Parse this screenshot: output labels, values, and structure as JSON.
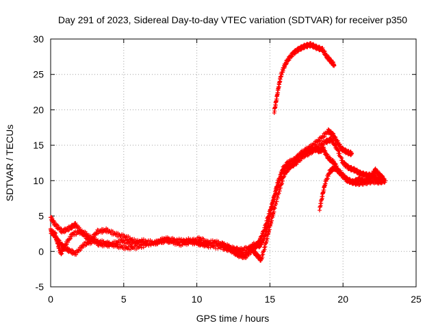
{
  "chart_data": {
    "type": "scatter",
    "title": "Day 291 of 2023, Sidereal Day-to-day VTEC variation (SDTVAR) for receiver p350",
    "xlabel": "GPS time / hours",
    "ylabel": "SDTVAR / TECUs",
    "xlim": [
      0,
      25
    ],
    "ylim": [
      -5,
      30
    ],
    "xticks": [
      0,
      5,
      10,
      15,
      20,
      25
    ],
    "yticks": [
      -5,
      0,
      5,
      10,
      15,
      20,
      25,
      30
    ],
    "grid": true,
    "marker": "+",
    "color": "#ff0000",
    "series": [
      {
        "name": "track-1",
        "points": [
          [
            0,
            4.8
          ],
          [
            0.3,
            3.8
          ],
          [
            0.8,
            2.8
          ],
          [
            1.3,
            3.3
          ],
          [
            1.7,
            3.8
          ],
          [
            2.2,
            2.5
          ],
          [
            2.7,
            1.5
          ],
          [
            3.2,
            2.8
          ],
          [
            3.8,
            3.0
          ],
          [
            4.5,
            2.4
          ],
          [
            5.2,
            2.0
          ],
          [
            6.0,
            1.2
          ],
          [
            7.0,
            1.1
          ],
          [
            7.8,
            1.8
          ],
          [
            8.5,
            1.6
          ],
          [
            9.5,
            1.4
          ],
          [
            10.2,
            1.8
          ],
          [
            10.8,
            1.2
          ],
          [
            11.8,
            1.0
          ],
          [
            12.5,
            0.4
          ],
          [
            13.0,
            0.2
          ],
          [
            13.6,
            0.5
          ],
          [
            14.0,
            0.6
          ],
          [
            14.3,
            1.5
          ],
          [
            14.6,
            3.0
          ],
          [
            14.9,
            5.0
          ],
          [
            15.2,
            7.0
          ],
          [
            15.5,
            9.0
          ],
          [
            15.8,
            11.0
          ],
          [
            16.2,
            12.5
          ],
          [
            16.7,
            13.0
          ],
          [
            17.2,
            14.0
          ],
          [
            17.8,
            14.8
          ],
          [
            18.4,
            15.8
          ],
          [
            19.0,
            17.0
          ],
          [
            19.3,
            16.5
          ],
          [
            19.6,
            15.5
          ],
          [
            19.9,
            14.5
          ],
          [
            20.3,
            14.0
          ],
          [
            20.6,
            13.8
          ]
        ]
      },
      {
        "name": "track-2",
        "points": [
          [
            0,
            3.0
          ],
          [
            0.4,
            1.8
          ],
          [
            0.8,
            0.8
          ],
          [
            1.2,
            0.2
          ],
          [
            1.7,
            -0.3
          ],
          [
            2.3,
            1.0
          ],
          [
            3.0,
            1.5
          ],
          [
            3.8,
            1.2
          ],
          [
            4.5,
            0.8
          ],
          [
            5.2,
            0.5
          ],
          [
            6.0,
            0.6
          ],
          [
            7.0,
            1.2
          ],
          [
            7.8,
            1.5
          ],
          [
            8.5,
            1.4
          ],
          [
            9.5,
            1.6
          ],
          [
            10.2,
            1.1
          ],
          [
            10.8,
            0.8
          ],
          [
            11.8,
            0.5
          ],
          [
            12.3,
            0.2
          ],
          [
            12.8,
            -0.5
          ],
          [
            13.3,
            -0.8
          ],
          [
            13.8,
            0.2
          ],
          [
            14.1,
            -0.5
          ],
          [
            14.4,
            -1.2
          ],
          [
            14.7,
            1.0
          ],
          [
            15.0,
            3.5
          ],
          [
            15.3,
            6.0
          ],
          [
            15.7,
            9.0
          ],
          [
            16.0,
            11.0
          ],
          [
            16.4,
            12.0
          ],
          [
            16.8,
            12.5
          ],
          [
            17.3,
            13.5
          ],
          [
            17.8,
            14.0
          ],
          [
            18.3,
            14.8
          ],
          [
            18.8,
            15.5
          ],
          [
            19.2,
            15.8
          ],
          [
            19.6,
            14.5
          ],
          [
            20.0,
            12.5
          ],
          [
            20.4,
            11.8
          ],
          [
            20.8,
            11.5
          ],
          [
            21.2,
            11.0
          ],
          [
            21.6,
            10.8
          ],
          [
            22.0,
            10.7
          ],
          [
            22.4,
            10.2
          ],
          [
            22.8,
            10.0
          ]
        ]
      },
      {
        "name": "track-3",
        "points": [
          [
            0,
            2.8
          ],
          [
            0.3,
            2.5
          ],
          [
            0.5,
            1.0
          ],
          [
            0.7,
            -0.3
          ],
          [
            1.0,
            0.9
          ],
          [
            1.5,
            2.5
          ],
          [
            2.2,
            2.8
          ],
          [
            2.8,
            1.8
          ],
          [
            3.3,
            1.0
          ],
          [
            4.0,
            0.9
          ],
          [
            4.8,
            1.5
          ],
          [
            5.5,
            1.2
          ],
          [
            6.3,
            1.5
          ],
          [
            7.2,
            1.2
          ],
          [
            8.0,
            1.6
          ],
          [
            8.8,
            1.0
          ],
          [
            9.6,
            1.3
          ],
          [
            10.4,
            1.0
          ],
          [
            11.2,
            1.4
          ],
          [
            12.0,
            0.8
          ],
          [
            12.7,
            -0.2
          ],
          [
            13.3,
            -0.4
          ],
          [
            13.9,
            1.0
          ],
          [
            14.3,
            0.8
          ],
          [
            14.6,
            1.8
          ],
          [
            14.9,
            4.0
          ],
          [
            15.2,
            7.0
          ],
          [
            15.5,
            9.5
          ],
          [
            15.9,
            11.8
          ],
          [
            16.4,
            12.2
          ],
          [
            17.0,
            13.5
          ],
          [
            17.5,
            14.2
          ],
          [
            18.0,
            14.5
          ],
          [
            18.4,
            14.2
          ],
          [
            18.7,
            14.5
          ]
        ]
      },
      {
        "name": "track-4",
        "points": [
          [
            18.7,
            14.2
          ],
          [
            19.0,
            13.2
          ],
          [
            19.4,
            12.5
          ],
          [
            19.8,
            11.0
          ],
          [
            20.3,
            10.0
          ],
          [
            20.7,
            9.8
          ],
          [
            21.1,
            10.2
          ],
          [
            21.5,
            9.9
          ],
          [
            21.9,
            10.5
          ],
          [
            22.2,
            11.5
          ],
          [
            22.5,
            10.8
          ],
          [
            22.8,
            10.2
          ]
        ]
      },
      {
        "name": "track-5",
        "points": [
          [
            18.4,
            6.0
          ],
          [
            18.6,
            8.0
          ],
          [
            18.8,
            9.8
          ],
          [
            19.1,
            11.3
          ],
          [
            19.4,
            11.8
          ],
          [
            19.8,
            11.2
          ],
          [
            20.2,
            10.3
          ],
          [
            20.6,
            9.8
          ],
          [
            21.0,
            9.6
          ],
          [
            21.5,
            9.7
          ],
          [
            22.0,
            9.9
          ],
          [
            22.5,
            9.8
          ],
          [
            22.9,
            10.0
          ]
        ]
      },
      {
        "name": "track-6",
        "points": [
          [
            15.3,
            19.8
          ],
          [
            15.45,
            21.5
          ],
          [
            15.6,
            23.3
          ],
          [
            15.75,
            24.8
          ],
          [
            15.95,
            26.0
          ],
          [
            16.2,
            27.0
          ],
          [
            16.6,
            28.0
          ],
          [
            17.0,
            28.6
          ],
          [
            17.4,
            29.0
          ],
          [
            17.8,
            29.2
          ],
          [
            18.2,
            28.8
          ],
          [
            18.6,
            28.5
          ],
          [
            18.9,
            27.5
          ],
          [
            19.2,
            26.8
          ],
          [
            19.4,
            26.3
          ]
        ]
      }
    ]
  }
}
